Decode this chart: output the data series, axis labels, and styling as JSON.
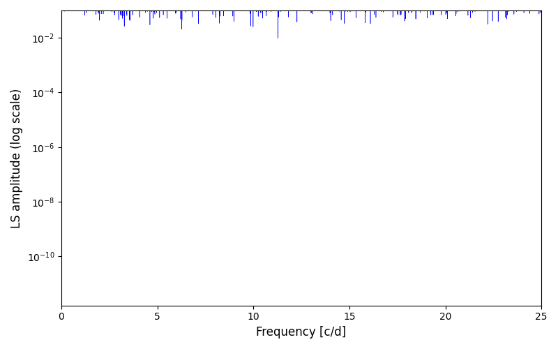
{
  "xlabel": "Frequency [c/d]",
  "ylabel": "LS amplitude (log scale)",
  "line_color": "#0000ff",
  "xlim": [
    0,
    25
  ],
  "ylim_log_min": -11.8,
  "ylim_log_max": -1.0,
  "freq_max": 25.0,
  "background_color": "#ffffff",
  "figsize": [
    8.0,
    5.0
  ],
  "dpi": 100,
  "xticks": [
    0,
    5,
    10,
    15,
    20,
    25
  ],
  "line_width": 0.4
}
